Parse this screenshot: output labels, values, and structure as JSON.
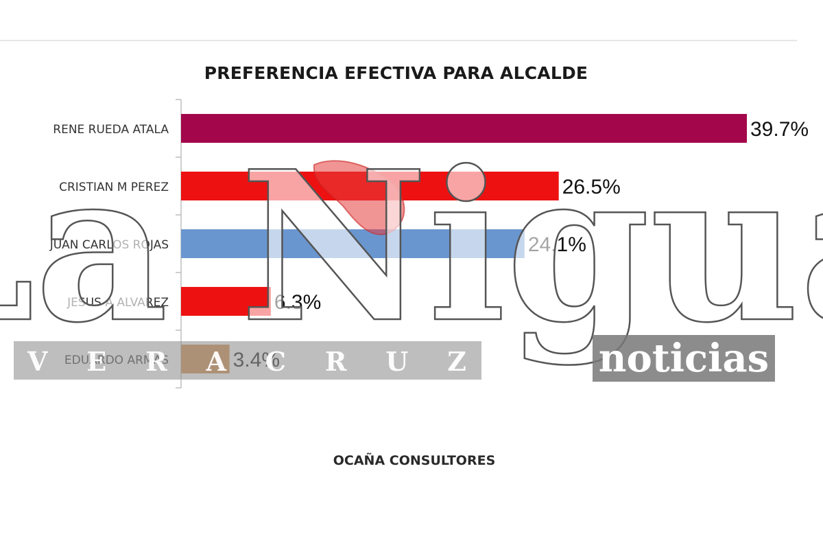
{
  "chart_data": {
    "type": "bar",
    "orientation": "horizontal",
    "title": "PREFERENCIA EFECTIVA PARA ALCALDE",
    "categories": [
      "RENE RUEDA ATALA",
      "CRISTIAN M PEREZ",
      "JUAN CARLOS ROJAS",
      "JESUS A ALVAREZ",
      "EDUARDO ARMAS"
    ],
    "values": [
      39.7,
      26.5,
      24.1,
      6.3,
      3.4
    ],
    "value_labels": [
      "39.7%",
      "26.5%",
      "24.1%",
      "6.3%",
      "3.4%"
    ],
    "colors": [
      "#a3064a",
      "#ee1111",
      "#6a96d0",
      "#ee1111",
      "#d18842"
    ],
    "xlim": [
      0,
      39.7
    ],
    "grid": false,
    "legend": "none"
  },
  "source": "OCAÑA CONSULTORES",
  "watermark": {
    "brand": "La Nigua",
    "region": "VERACRUZ",
    "tagline": "noticias"
  }
}
